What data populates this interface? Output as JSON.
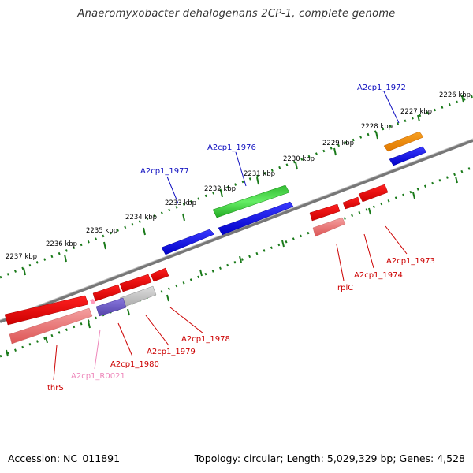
{
  "title": "Anaeromyxobacter dehalogenans 2CP-1, complete genome",
  "footer": {
    "accession": "Accession: NC_011891",
    "summary": "Topology: circular; Length: 5,029,329 bp; Genes: 4,528"
  },
  "ruler_labels": [
    "2226 kbp",
    "2227 kbp",
    "2228 kbp",
    "2229 kbp",
    "2230 kbp",
    "2231 kbp",
    "2232 kbp",
    "2233 kbp",
    "2234 kbp",
    "2235 kbp",
    "2236 kbp",
    "2237 kbp"
  ],
  "genes": {
    "A2cp1_1972": "A2cp1_1972",
    "A2cp1_1976": "A2cp1_1976",
    "A2cp1_1977": "A2cp1_1977",
    "A2cp1_1973": "A2cp1_1973",
    "A2cp1_1974": "A2cp1_1974",
    "rplC": "rplC",
    "A2cp1_1978": "A2cp1_1978",
    "A2cp1_1979": "A2cp1_1979",
    "A2cp1_1980": "A2cp1_1980",
    "A2cp1_R0021": "A2cp1_R0021",
    "thrS": "thrS"
  },
  "colors": {
    "forward_label": "#1010c0",
    "reverse_label": "#cc0000",
    "rna_label": "#ee88bb",
    "backbone": "#777777",
    "tick": "#1a7a1a"
  }
}
